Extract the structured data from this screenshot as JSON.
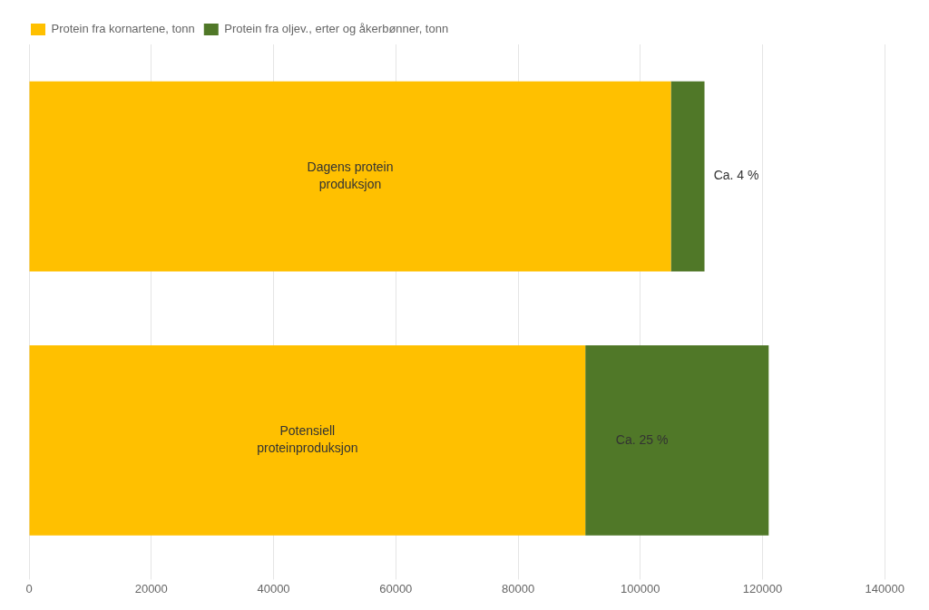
{
  "chart_data": {
    "type": "bar",
    "orientation": "horizontal",
    "stacked": true,
    "categories": [
      "Potensiell\nproteinproduksjon",
      "Dagens protein\nproduksjon"
    ],
    "series": [
      {
        "name": "Protein fra kornartene, tonn",
        "color": "#FFC000",
        "values": [
          91000,
          105000
        ]
      },
      {
        "name": "Protein fra oljev., erter og åkerbønner, tonn",
        "color": "#507828",
        "values": [
          30000,
          5500
        ]
      }
    ],
    "annotations": [
      {
        "text": "Ca. 25 %",
        "category": "Potensiell\nproteinproduksjon",
        "x": 96000
      },
      {
        "text": "Ca. 4 %",
        "category": "Dagens protein\nproduksjon",
        "x": 112000
      }
    ],
    "xlim": [
      0,
      140000
    ],
    "xticks": [
      0,
      20000,
      40000,
      60000,
      80000,
      100000,
      120000,
      140000
    ],
    "grid": "x",
    "legend": "top",
    "tick_labels": "x"
  }
}
